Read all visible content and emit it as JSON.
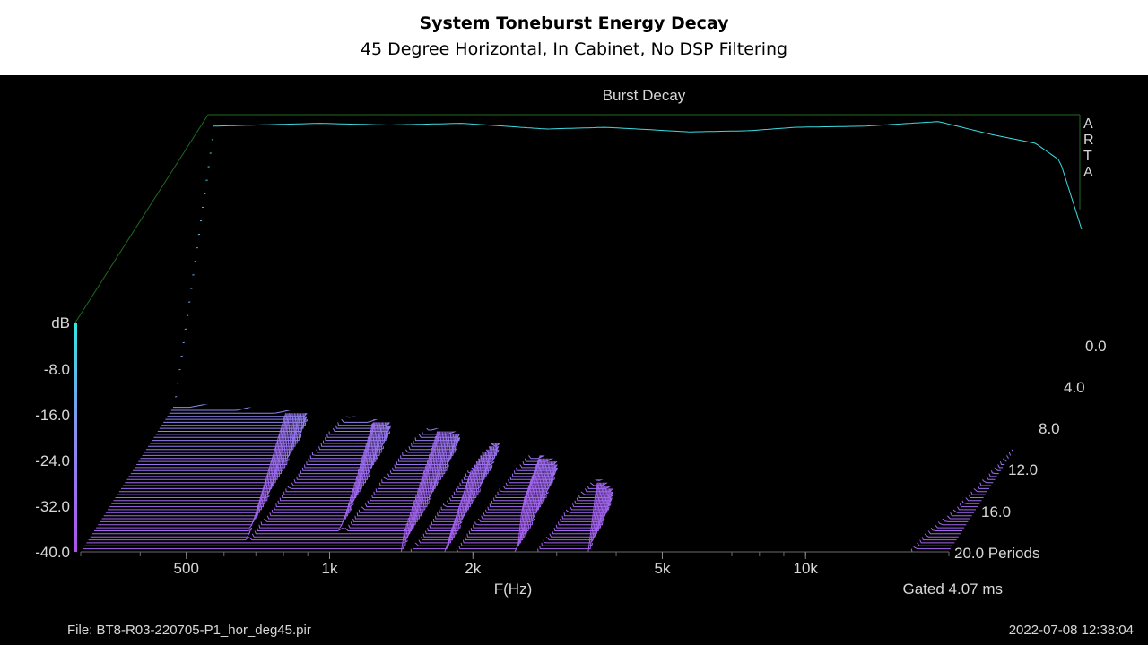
{
  "header": {
    "title": "System Toneburst Energy Decay",
    "subtitle": "45 Degree Horizontal, In Cabinet, No DSP Filtering"
  },
  "chart_data": {
    "type": "waterfall-3d",
    "title": "Burst Decay",
    "watermark": "ARTA",
    "xlabel": "F(Hz)",
    "ylabel": "dB",
    "zlabel": "Periods",
    "x_scale": "log",
    "x_range_hz": [
      300,
      20000
    ],
    "x_ticks": [
      {
        "value": 500,
        "label": "500"
      },
      {
        "value": 1000,
        "label": "1k"
      },
      {
        "value": 2000,
        "label": "2k"
      },
      {
        "value": 5000,
        "label": "5k"
      },
      {
        "value": 10000,
        "label": "10k"
      }
    ],
    "y_range_db": [
      -40,
      0
    ],
    "y_ticks": [
      "-8.0",
      "-16.0",
      "-24.0",
      "-32.0",
      "-40.0"
    ],
    "z_range_periods": [
      0,
      20
    ],
    "z_ticks": [
      "0.0",
      "4.0",
      "8.0",
      "12.0",
      "16.0",
      "20.0 Periods"
    ],
    "colors": {
      "top": "#30e8e0",
      "mid": "#8a8cf0",
      "low": "#b050f0",
      "floor": "#a040e8"
    },
    "response_front_db": [
      {
        "f": 300,
        "db": -2
      },
      {
        "f": 500,
        "db": -1.5
      },
      {
        "f": 700,
        "db": -1.8
      },
      {
        "f": 1000,
        "db": -1.5
      },
      {
        "f": 1500,
        "db": -2.5
      },
      {
        "f": 2000,
        "db": -2.2
      },
      {
        "f": 3000,
        "db": -3
      },
      {
        "f": 4000,
        "db": -2.8
      },
      {
        "f": 5000,
        "db": -2.2
      },
      {
        "f": 7000,
        "db": -2
      },
      {
        "f": 10000,
        "db": -1.2
      },
      {
        "f": 13000,
        "db": -3.5
      },
      {
        "f": 16000,
        "db": -5
      },
      {
        "f": 18000,
        "db": -8
      },
      {
        "f": 20000,
        "db": -20
      }
    ],
    "gate_text": "Gated 4.07 ms"
  },
  "footer": {
    "file": "File: BT8-R03-220705-P1_hor_deg45.pir",
    "datetime": "2022-07-08   12:38:04"
  }
}
